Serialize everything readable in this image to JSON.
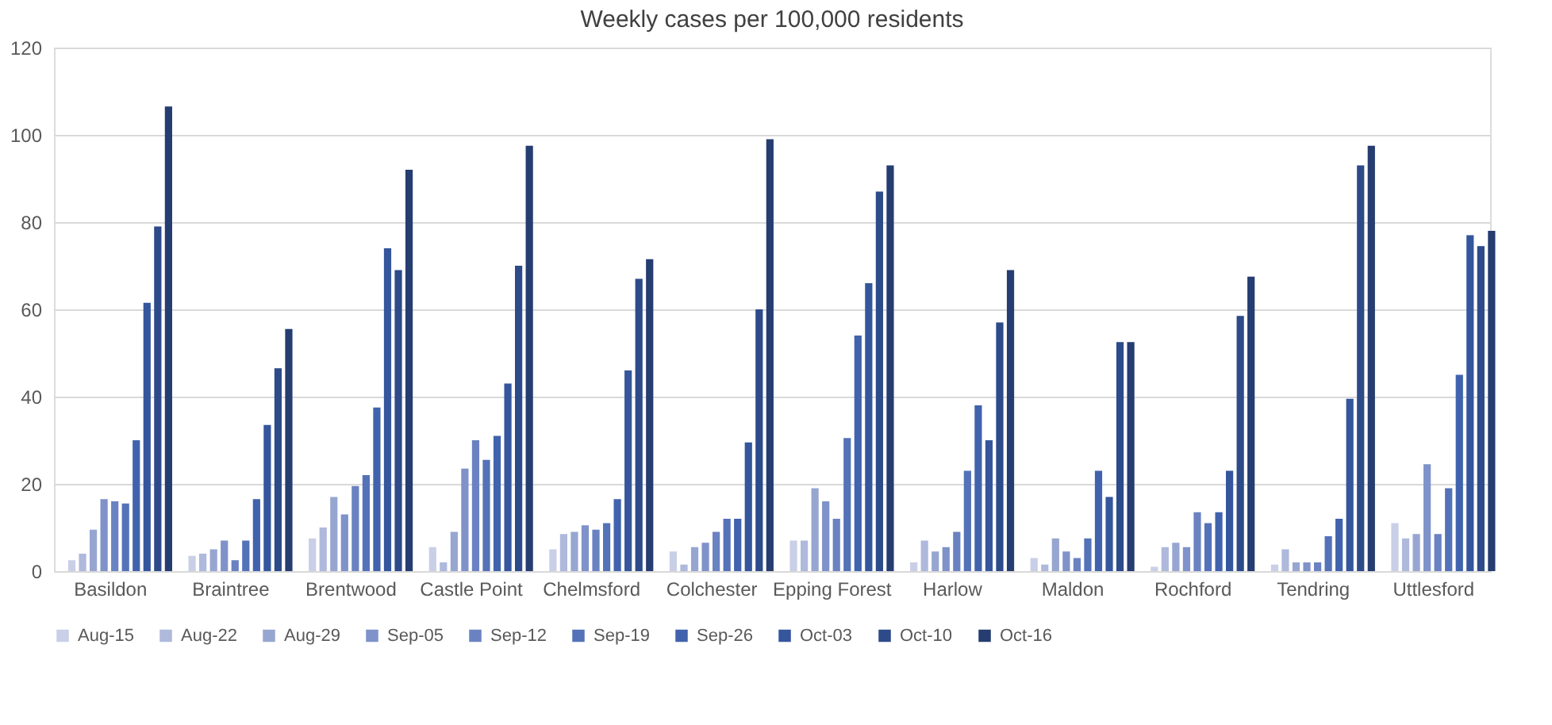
{
  "chart_data": {
    "type": "bar",
    "title": "Weekly cases per 100,000 residents",
    "categories": [
      "Basildon",
      "Braintree",
      "Brentwood",
      "Castle Point",
      "Chelmsford",
      "Colchester",
      "Epping Forest",
      "Harlow",
      "Maldon",
      "Rochford",
      "Tendring",
      "Uttlesford"
    ],
    "series": [
      {
        "name": "Aug-15",
        "color": "#c9cfe6",
        "values": [
          2.5,
          3.5,
          7.5,
          5.5,
          5,
          4.5,
          7,
          2,
          3,
          1,
          1.5,
          11
        ]
      },
      {
        "name": "Aug-22",
        "color": "#aeb9dc",
        "values": [
          4,
          4,
          10,
          2,
          8.5,
          1.5,
          7,
          7,
          1.5,
          5.5,
          5,
          7.5
        ]
      },
      {
        "name": "Aug-29",
        "color": "#97a6d1",
        "values": [
          9.5,
          5,
          17,
          9,
          9,
          5.5,
          19,
          4.5,
          7.5,
          6.5,
          2,
          8.5
        ]
      },
      {
        "name": "Sep-05",
        "color": "#7f92c9",
        "values": [
          16.5,
          7,
          13,
          23.5,
          10.5,
          6.5,
          16,
          5.5,
          4.5,
          5.5,
          2,
          24.5
        ]
      },
      {
        "name": "Sep-12",
        "color": "#6a82c1",
        "values": [
          16,
          2.5,
          19.5,
          30,
          9.5,
          9,
          12,
          9,
          3,
          13.5,
          2,
          8.5
        ]
      },
      {
        "name": "Sep-19",
        "color": "#5472b8",
        "values": [
          15.5,
          7,
          22,
          25.5,
          11,
          12,
          30.5,
          23,
          7.5,
          11,
          8,
          19
        ]
      },
      {
        "name": "Sep-26",
        "color": "#4163ad",
        "values": [
          30,
          16.5,
          37.5,
          31,
          16.5,
          12,
          54,
          38,
          23,
          13.5,
          12,
          45
        ]
      },
      {
        "name": "Oct-03",
        "color": "#35569c",
        "values": [
          61.5,
          33.5,
          74,
          43,
          46,
          29.5,
          66,
          30,
          17,
          23,
          39.5,
          77
        ]
      },
      {
        "name": "Oct-10",
        "color": "#2d4a89",
        "values": [
          79,
          46.5,
          69,
          70,
          67,
          60,
          87,
          57,
          52.5,
          58.5,
          93,
          74.5
        ]
      },
      {
        "name": "Oct-16",
        "color": "#253d70",
        "values": [
          106.5,
          55.5,
          92,
          97.5,
          71.5,
          99,
          93,
          69,
          52.5,
          67.5,
          97.5,
          78
        ]
      }
    ],
    "ylim": [
      0,
      120
    ],
    "yticks": [
      0,
      20,
      40,
      60,
      80,
      100,
      120
    ],
    "grid": "y",
    "legend": "bottom"
  }
}
